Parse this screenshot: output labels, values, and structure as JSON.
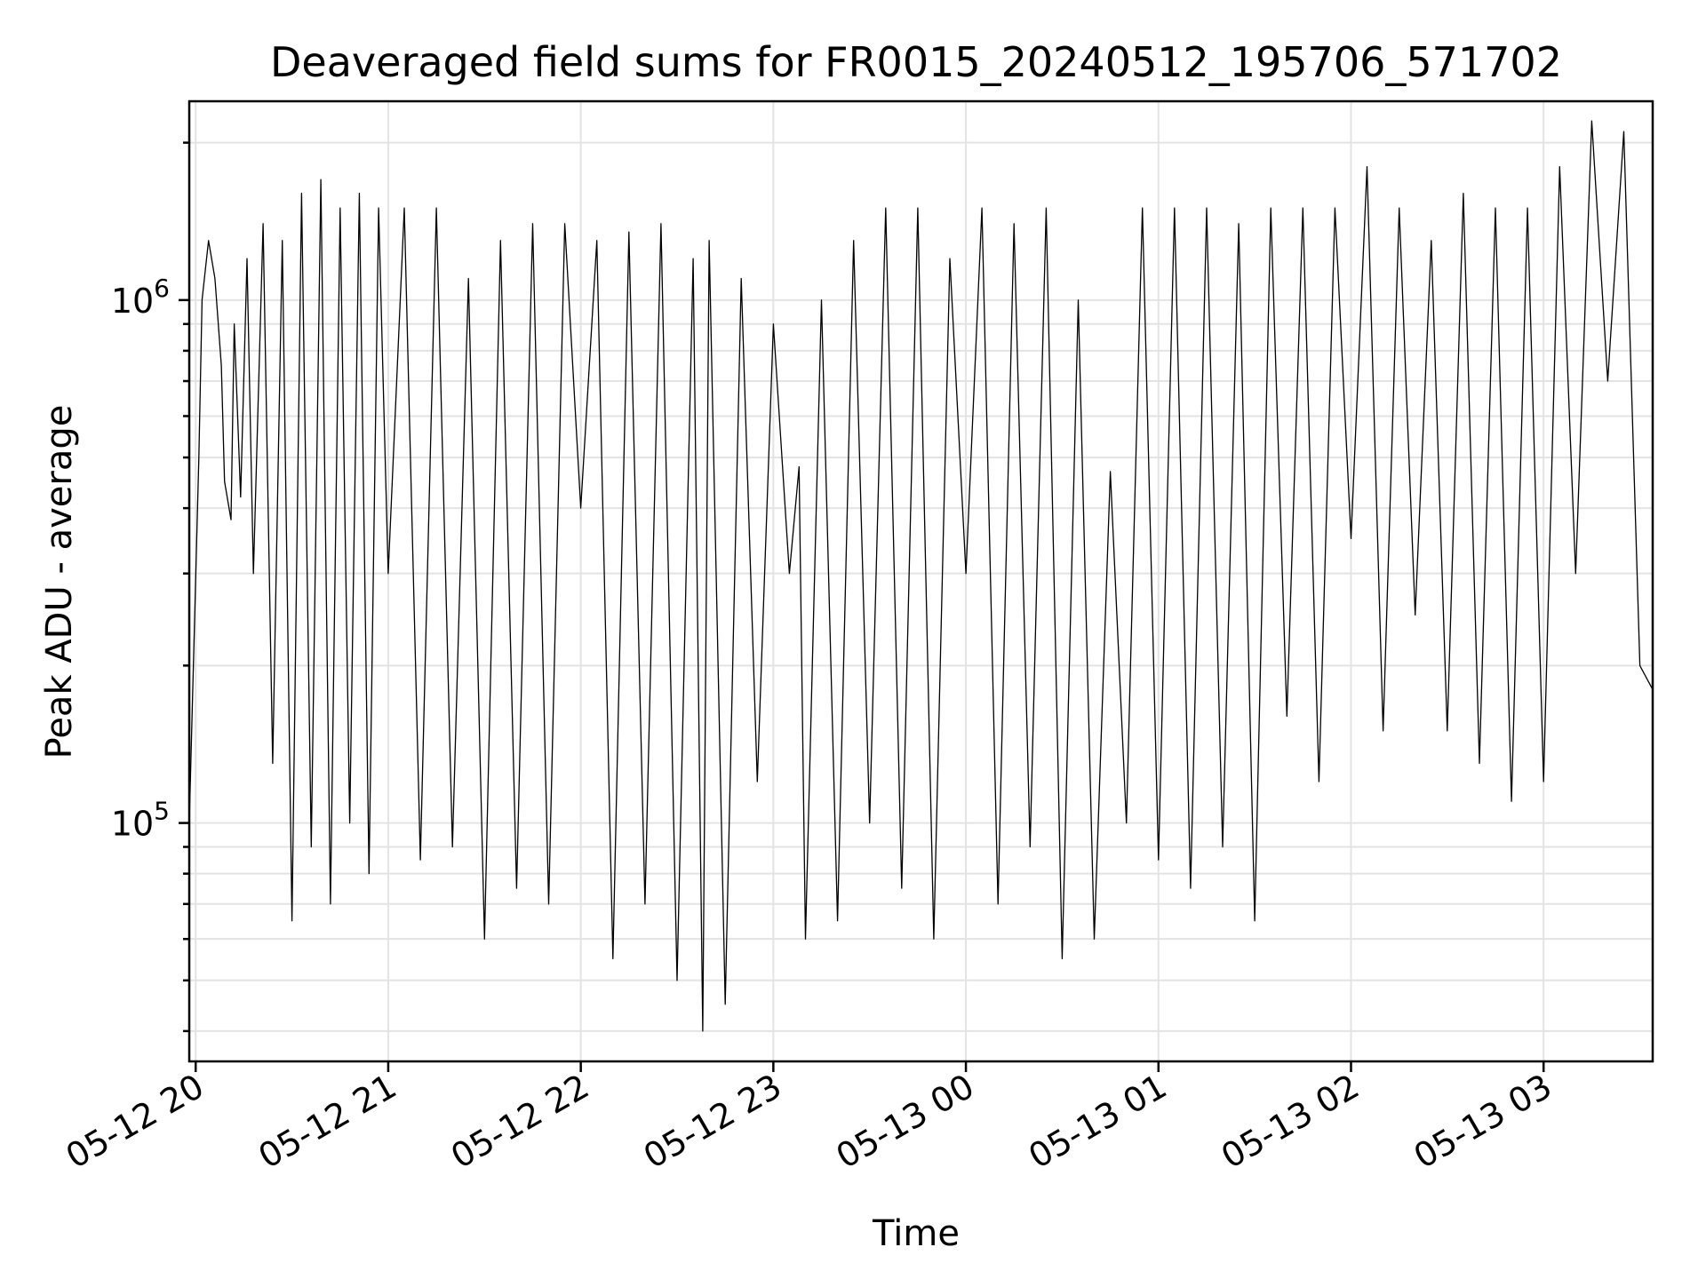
{
  "chart_data": {
    "type": "line",
    "title": "Deaveraged field sums for FR0015_20240512_195706_571702",
    "xlabel": "Time",
    "ylabel": "Peak ADU - average",
    "y_scale": "log",
    "ylim": [
      35000,
      2400000
    ],
    "xlim": [
      "2024-05-12 19:58",
      "2024-05-13 03:34"
    ],
    "x_ticks": [
      "2024-05-12 20:00",
      "2024-05-12 21:00",
      "2024-05-12 22:00",
      "2024-05-12 23:00",
      "2024-05-13 00:00",
      "2024-05-13 01:00",
      "2024-05-13 02:00",
      "2024-05-13 03:00"
    ],
    "x_tick_labels": [
      "05-12 20",
      "05-12 21",
      "05-12 22",
      "05-12 23",
      "05-13 00",
      "05-13 01",
      "05-13 02",
      "05-13 03"
    ],
    "y_ticks": [
      100000,
      1000000
    ],
    "y_tick_labels": [
      {
        "base": "10",
        "exp": "5"
      },
      {
        "base": "10",
        "exp": "6"
      }
    ],
    "grid": true,
    "line_color": "#000000",
    "series": [
      {
        "x": [
          "2024-05-12 19:58",
          "2024-05-12 20:01",
          "2024-05-12 20:02",
          "2024-05-12 20:04",
          "2024-05-12 20:06",
          "2024-05-12 20:08",
          "2024-05-12 20:09",
          "2024-05-12 20:11",
          "2024-05-12 20:12",
          "2024-05-12 20:14",
          "2024-05-12 20:16",
          "2024-05-12 20:18",
          "2024-05-12 20:21",
          "2024-05-12 20:24",
          "2024-05-12 20:27",
          "2024-05-12 20:30",
          "2024-05-12 20:33",
          "2024-05-12 20:36",
          "2024-05-12 20:39",
          "2024-05-12 20:42",
          "2024-05-12 20:45",
          "2024-05-12 20:48",
          "2024-05-12 20:51",
          "2024-05-12 20:54",
          "2024-05-12 20:57",
          "2024-05-12 21:00",
          "2024-05-12 21:05",
          "2024-05-12 21:10",
          "2024-05-12 21:15",
          "2024-05-12 21:20",
          "2024-05-12 21:25",
          "2024-05-12 21:30",
          "2024-05-12 21:35",
          "2024-05-12 21:40",
          "2024-05-12 21:45",
          "2024-05-12 21:50",
          "2024-05-12 21:55",
          "2024-05-12 22:00",
          "2024-05-12 22:05",
          "2024-05-12 22:10",
          "2024-05-12 22:15",
          "2024-05-12 22:20",
          "2024-05-12 22:25",
          "2024-05-12 22:30",
          "2024-05-12 22:35",
          "2024-05-12 22:38",
          "2024-05-12 22:40",
          "2024-05-12 22:45",
          "2024-05-12 22:50",
          "2024-05-12 22:55",
          "2024-05-12 23:00",
          "2024-05-12 23:05",
          "2024-05-12 23:08",
          "2024-05-12 23:10",
          "2024-05-12 23:15",
          "2024-05-12 23:20",
          "2024-05-12 23:25",
          "2024-05-12 23:30",
          "2024-05-12 23:35",
          "2024-05-12 23:40",
          "2024-05-12 23:45",
          "2024-05-12 23:50",
          "2024-05-12 23:55",
          "2024-05-13 00:00",
          "2024-05-13 00:05",
          "2024-05-13 00:10",
          "2024-05-13 00:15",
          "2024-05-13 00:20",
          "2024-05-13 00:25",
          "2024-05-13 00:30",
          "2024-05-13 00:35",
          "2024-05-13 00:40",
          "2024-05-13 00:45",
          "2024-05-13 00:50",
          "2024-05-13 00:55",
          "2024-05-13 01:00",
          "2024-05-13 01:05",
          "2024-05-13 01:10",
          "2024-05-13 01:15",
          "2024-05-13 01:20",
          "2024-05-13 01:25",
          "2024-05-13 01:30",
          "2024-05-13 01:35",
          "2024-05-13 01:40",
          "2024-05-13 01:45",
          "2024-05-13 01:50",
          "2024-05-13 01:55",
          "2024-05-13 02:00",
          "2024-05-13 02:05",
          "2024-05-13 02:10",
          "2024-05-13 02:15",
          "2024-05-13 02:20",
          "2024-05-13 02:25",
          "2024-05-13 02:30",
          "2024-05-13 02:35",
          "2024-05-13 02:40",
          "2024-05-13 02:45",
          "2024-05-13 02:50",
          "2024-05-13 02:55",
          "2024-05-13 03:00",
          "2024-05-13 03:05",
          "2024-05-13 03:10",
          "2024-05-13 03:15",
          "2024-05-13 03:20",
          "2024-05-13 03:25",
          "2024-05-13 03:30",
          "2024-05-13 03:34"
        ],
        "y": [
          100000,
          500000,
          1000000,
          1300000,
          1100000,
          750000,
          450000,
          380000,
          900000,
          420000,
          1200000,
          300000,
          1400000,
          130000,
          1300000,
          65000,
          1600000,
          90000,
          1700000,
          70000,
          1500000,
          100000,
          1600000,
          80000,
          1500000,
          300000,
          1500000,
          85000,
          1500000,
          90000,
          1100000,
          60000,
          1300000,
          75000,
          1400000,
          70000,
          1400000,
          400000,
          1300000,
          55000,
          1350000,
          70000,
          1400000,
          50000,
          1200000,
          40000,
          1300000,
          45000,
          1100000,
          120000,
          900000,
          300000,
          480000,
          60000,
          1000000,
          65000,
          1300000,
          100000,
          1500000,
          75000,
          1500000,
          60000,
          1200000,
          300000,
          1500000,
          70000,
          1400000,
          90000,
          1500000,
          55000,
          1000000,
          60000,
          470000,
          100000,
          1500000,
          85000,
          1500000,
          75000,
          1500000,
          90000,
          1400000,
          65000,
          1500000,
          160000,
          1500000,
          120000,
          1500000,
          350000,
          1800000,
          150000,
          1500000,
          250000,
          1300000,
          150000,
          1600000,
          130000,
          1500000,
          110000,
          1500000,
          120000,
          1800000,
          300000,
          2200000,
          700000,
          2100000,
          200000,
          180000
        ]
      }
    ]
  }
}
